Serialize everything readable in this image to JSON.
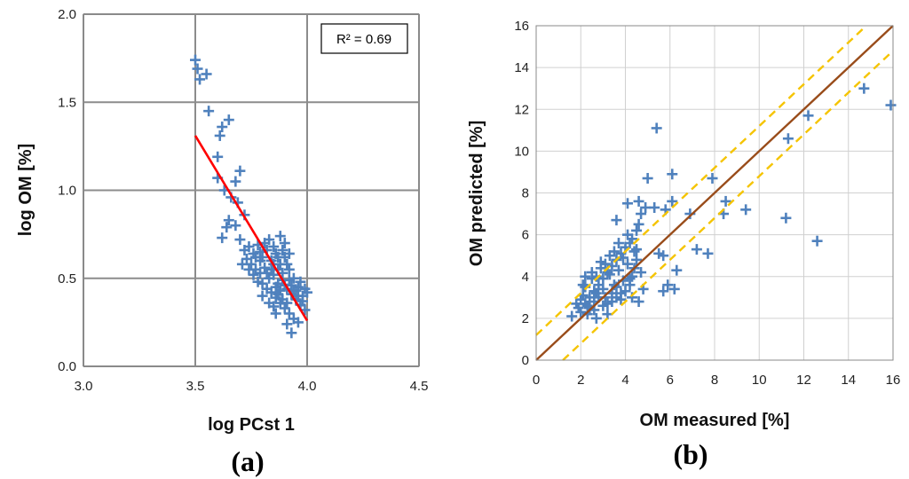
{
  "chart_data": [
    {
      "type": "scatter",
      "panel_label": "(a)",
      "xlabel": "log PCst 1",
      "ylabel": "log OM [%]",
      "xlim": [
        3.0,
        4.5
      ],
      "ylim": [
        0.0,
        2.0
      ],
      "xticks": [
        3.0,
        3.5,
        4.0,
        4.5
      ],
      "xtick_labels": [
        "3.0",
        "3.5",
        "4.0",
        "4.5"
      ],
      "yticks": [
        0.0,
        0.5,
        1.0,
        1.5,
        2.0
      ],
      "ytick_labels": [
        "0.0",
        "0.5",
        "1.0",
        "1.5",
        "2.0"
      ],
      "grid": true,
      "annotation": "R² = 0.69",
      "marker_color": "#4F81BD",
      "fit_color": "#FF0000",
      "fit_line": {
        "x": [
          3.5,
          4.0
        ],
        "y": [
          1.31,
          0.26
        ]
      },
      "series": [
        {
          "name": "samples",
          "points": [
            [
              3.5,
              1.74
            ],
            [
              3.51,
              1.69
            ],
            [
              3.52,
              1.63
            ],
            [
              3.55,
              1.66
            ],
            [
              3.56,
              1.45
            ],
            [
              3.6,
              1.19
            ],
            [
              3.61,
              1.31
            ],
            [
              3.62,
              1.36
            ],
            [
              3.65,
              1.4
            ],
            [
              3.68,
              1.05
            ],
            [
              3.7,
              1.11
            ],
            [
              3.6,
              1.07
            ],
            [
              3.63,
              1.0
            ],
            [
              3.66,
              0.96
            ],
            [
              3.69,
              0.93
            ],
            [
              3.72,
              0.86
            ],
            [
              3.65,
              0.83
            ],
            [
              3.68,
              0.8
            ],
            [
              3.62,
              0.73
            ],
            [
              3.64,
              0.79
            ],
            [
              3.7,
              0.72
            ],
            [
              3.72,
              0.66
            ],
            [
              3.74,
              0.68
            ],
            [
              3.76,
              0.64
            ],
            [
              3.78,
              0.69
            ],
            [
              3.8,
              0.62
            ],
            [
              3.82,
              0.66
            ],
            [
              3.84,
              0.6
            ],
            [
              3.86,
              0.64
            ],
            [
              3.88,
              0.58
            ],
            [
              3.9,
              0.62
            ],
            [
              3.92,
              0.55
            ],
            [
              3.94,
              0.5
            ],
            [
              3.96,
              0.45
            ],
            [
              3.98,
              0.4
            ],
            [
              3.75,
              0.58
            ],
            [
              3.77,
              0.55
            ],
            [
              3.79,
              0.53
            ],
            [
              3.81,
              0.56
            ],
            [
              3.83,
              0.5
            ],
            [
              3.85,
              0.52
            ],
            [
              3.87,
              0.47
            ],
            [
              3.89,
              0.49
            ],
            [
              3.91,
              0.44
            ],
            [
              3.93,
              0.41
            ],
            [
              3.95,
              0.38
            ],
            [
              3.97,
              0.35
            ],
            [
              3.99,
              0.32
            ],
            [
              3.8,
              0.47
            ],
            [
              3.82,
              0.44
            ],
            [
              3.84,
              0.42
            ],
            [
              3.86,
              0.39
            ],
            [
              3.88,
              0.36
            ],
            [
              3.9,
              0.33
            ],
            [
              3.92,
              0.3
            ],
            [
              3.94,
              0.27
            ],
            [
              3.96,
              0.25
            ],
            [
              3.86,
              0.3
            ],
            [
              3.93,
              0.19
            ],
            [
              3.91,
              0.24
            ],
            [
              3.78,
              0.48
            ],
            [
              3.8,
              0.4
            ],
            [
              3.83,
              0.36
            ],
            [
              3.85,
              0.34
            ],
            [
              3.87,
              0.41
            ],
            [
              3.89,
              0.38
            ],
            [
              3.91,
              0.36
            ],
            [
              3.73,
              0.61
            ],
            [
              3.76,
              0.52
            ],
            [
              3.79,
              0.6
            ],
            [
              3.81,
              0.7
            ],
            [
              3.83,
              0.72
            ],
            [
              3.85,
              0.68
            ],
            [
              3.87,
              0.55
            ],
            [
              3.89,
              0.53
            ],
            [
              3.91,
              0.58
            ],
            [
              3.93,
              0.46
            ],
            [
              3.95,
              0.43
            ],
            [
              3.97,
              0.48
            ],
            [
              4.0,
              0.42
            ],
            [
              3.71,
              0.58
            ],
            [
              3.74,
              0.55
            ],
            [
              3.77,
              0.62
            ],
            [
              3.79,
              0.65
            ],
            [
              3.82,
              0.53
            ],
            [
              3.84,
              0.55
            ],
            [
              3.86,
              0.45
            ],
            [
              3.88,
              0.43
            ],
            [
              3.9,
              0.46
            ],
            [
              3.92,
              0.49
            ],
            [
              3.94,
              0.43
            ],
            [
              3.96,
              0.4
            ],
            [
              3.98,
              0.37
            ],
            [
              3.99,
              0.44
            ],
            [
              3.85,
              0.58
            ],
            [
              3.87,
              0.62
            ],
            [
              3.89,
              0.66
            ],
            [
              3.9,
              0.7
            ],
            [
              3.92,
              0.64
            ],
            [
              3.88,
              0.74
            ]
          ]
        }
      ]
    },
    {
      "type": "scatter",
      "panel_label": "(b)",
      "xlabel": "OM measured [%]",
      "ylabel": "OM predicted [%]",
      "xlim": [
        0,
        16
      ],
      "ylim": [
        0,
        16
      ],
      "xticks": [
        0,
        2,
        4,
        6,
        8,
        10,
        12,
        14,
        16
      ],
      "xtick_labels": [
        "0",
        "2",
        "4",
        "6",
        "8",
        "10",
        "12",
        "14",
        "16"
      ],
      "yticks": [
        0,
        2,
        4,
        6,
        8,
        10,
        12,
        14,
        16
      ],
      "ytick_labels": [
        "0",
        "2",
        "4",
        "6",
        "8",
        "10",
        "12",
        "14",
        "16"
      ],
      "grid": true,
      "marker_color": "#4F81BD",
      "lines": [
        {
          "name": "1:1 line",
          "x": [
            0,
            16
          ],
          "y": [
            0,
            16
          ],
          "color": "#994C1A",
          "dashed": false
        },
        {
          "name": "upper bound",
          "x": [
            0,
            14.8
          ],
          "y": [
            1.2,
            16
          ],
          "color": "#F5C400",
          "dashed": true
        },
        {
          "name": "lower bound",
          "x": [
            1.2,
            16
          ],
          "y": [
            0,
            14.8
          ],
          "color": "#F5C400",
          "dashed": true
        }
      ],
      "series": [
        {
          "name": "samples",
          "points": [
            [
              15.9,
              12.2
            ],
            [
              14.7,
              13.0
            ],
            [
              12.2,
              11.7
            ],
            [
              11.3,
              10.6
            ],
            [
              11.2,
              6.8
            ],
            [
              12.6,
              5.7
            ],
            [
              9.4,
              7.2
            ],
            [
              8.5,
              7.6
            ],
            [
              8.4,
              7.0
            ],
            [
              7.9,
              8.7
            ],
            [
              7.7,
              5.1
            ],
            [
              7.2,
              5.3
            ],
            [
              6.9,
              7.0
            ],
            [
              6.2,
              3.4
            ],
            [
              6.3,
              4.3
            ],
            [
              6.1,
              8.9
            ],
            [
              5.4,
              11.1
            ],
            [
              5.0,
              8.7
            ],
            [
              5.3,
              7.3
            ],
            [
              4.6,
              7.6
            ],
            [
              4.9,
              7.3
            ],
            [
              4.7,
              7.0
            ],
            [
              4.1,
              7.5
            ],
            [
              3.6,
              6.7
            ],
            [
              5.8,
              7.2
            ],
            [
              5.9,
              3.6
            ],
            [
              5.7,
              3.3
            ],
            [
              5.5,
              5.1
            ],
            [
              5.7,
              5.0
            ],
            [
              6.1,
              7.6
            ],
            [
              4.5,
              5.3
            ],
            [
              4.8,
              3.4
            ],
            [
              4.3,
              3.0
            ],
            [
              4.6,
              2.8
            ],
            [
              3.2,
              2.2
            ],
            [
              2.7,
              2.0
            ],
            [
              1.6,
              2.1
            ],
            [
              2.0,
              2.3
            ],
            [
              2.2,
              2.7
            ],
            [
              2.4,
              3.0
            ],
            [
              2.6,
              3.3
            ],
            [
              2.8,
              3.6
            ],
            [
              3.0,
              3.9
            ],
            [
              3.2,
              4.2
            ],
            [
              3.4,
              4.5
            ],
            [
              3.6,
              4.8
            ],
            [
              3.8,
              5.1
            ],
            [
              4.0,
              5.4
            ],
            [
              4.2,
              5.6
            ],
            [
              4.4,
              5.2
            ],
            [
              2.1,
              3.1
            ],
            [
              2.3,
              2.6
            ],
            [
              2.5,
              3.9
            ],
            [
              2.7,
              3.2
            ],
            [
              2.9,
              4.4
            ],
            [
              3.1,
              3.0
            ],
            [
              3.3,
              4.1
            ],
            [
              3.5,
              3.6
            ],
            [
              3.7,
              4.3
            ],
            [
              3.9,
              3.8
            ],
            [
              4.1,
              4.6
            ],
            [
              4.3,
              4.0
            ],
            [
              4.5,
              4.8
            ],
            [
              4.7,
              4.2
            ],
            [
              2.0,
              2.9
            ],
            [
              2.2,
              3.5
            ],
            [
              2.4,
              2.5
            ],
            [
              2.6,
              2.8
            ],
            [
              2.8,
              3.0
            ],
            [
              3.0,
              3.4
            ],
            [
              3.2,
              2.7
            ],
            [
              3.4,
              3.2
            ],
            [
              3.6,
              3.5
            ],
            [
              3.8,
              2.9
            ],
            [
              4.0,
              3.3
            ],
            [
              4.2,
              3.6
            ],
            [
              4.4,
              4.4
            ],
            [
              2.5,
              4.2
            ],
            [
              2.9,
              4.7
            ],
            [
              3.3,
              5.0
            ],
            [
              3.7,
              5.6
            ],
            [
              4.1,
              6.0
            ],
            [
              4.5,
              6.2
            ],
            [
              1.9,
              2.5
            ],
            [
              2.3,
              2.2
            ],
            [
              2.6,
              2.4
            ],
            [
              3.0,
              2.6
            ],
            [
              3.4,
              2.8
            ],
            [
              3.8,
              3.2
            ],
            [
              4.2,
              3.9
            ],
            [
              2.1,
              3.6
            ],
            [
              2.7,
              4.0
            ],
            [
              3.1,
              4.6
            ],
            [
              3.5,
              5.2
            ],
            [
              3.9,
              4.9
            ],
            [
              4.3,
              5.8
            ],
            [
              4.6,
              6.5
            ],
            [
              1.8,
              2.7
            ],
            [
              2.2,
              4.0
            ],
            [
              3.6,
              3.0
            ]
          ]
        }
      ]
    }
  ]
}
